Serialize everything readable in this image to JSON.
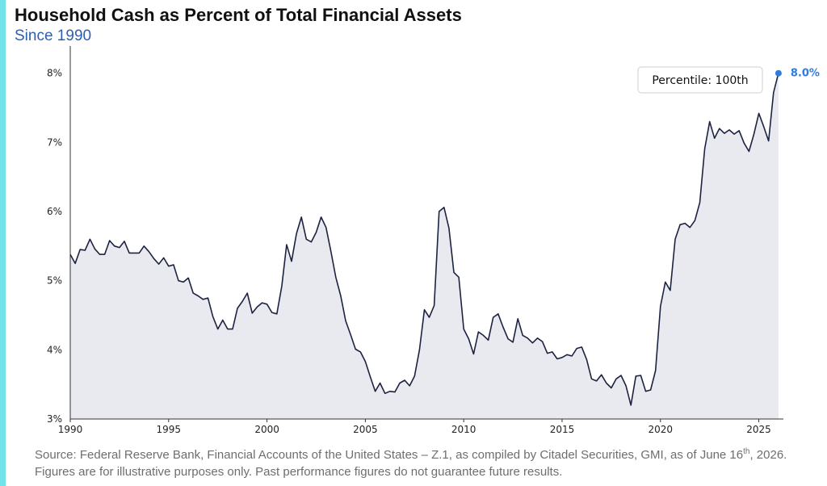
{
  "colors": {
    "accent_bar": "#6FE3E8",
    "subtitle": "#2E5FAE",
    "line": "#1C2340",
    "area_fill": "#E9EAF0",
    "axis": "#333333",
    "last_point": "#2F7BE0"
  },
  "chart_data": {
    "type": "area",
    "title": "Household Cash as Percent of Total Financial Assets",
    "subtitle": "Since 1990",
    "xlabel": "",
    "ylabel": "",
    "xlim": [
      1990,
      2026.25
    ],
    "ylim": [
      3,
      8.3
    ],
    "x_ticks": [
      1990,
      1995,
      2000,
      2005,
      2010,
      2015,
      2020,
      2025
    ],
    "y_ticks": [
      3,
      4,
      5,
      6,
      7,
      8
    ],
    "y_tick_labels": [
      "3%",
      "4%",
      "5%",
      "6%",
      "7%",
      "8%"
    ],
    "grid": false,
    "series": [
      {
        "x": [
          1990.0,
          1990.25,
          1990.5,
          1990.75,
          1991.0,
          1991.25,
          1991.5,
          1991.75,
          1992.0,
          1992.25,
          1992.5,
          1992.75,
          1993.0,
          1993.25,
          1993.5,
          1993.75,
          1994.0,
          1994.25,
          1994.5,
          1994.75,
          1995.0,
          1995.25,
          1995.5,
          1995.75,
          1996.0,
          1996.25,
          1996.5,
          1996.75,
          1997.0,
          1997.25,
          1997.5,
          1997.75,
          1998.0,
          1998.25,
          1998.5,
          1998.75,
          1999.0,
          1999.25,
          1999.5,
          1999.75,
          2000.0,
          2000.25,
          2000.5,
          2000.75,
          2001.0,
          2001.25,
          2001.5,
          2001.75,
          2002.0,
          2002.25,
          2002.5,
          2002.75,
          2003.0,
          2003.25,
          2003.5,
          2003.75,
          2004.0,
          2004.25,
          2004.5,
          2004.75,
          2005.0,
          2005.25,
          2005.5,
          2005.75,
          2006.0,
          2006.25,
          2006.5,
          2006.75,
          2007.0,
          2007.25,
          2007.5,
          2007.75,
          2008.0,
          2008.25,
          2008.5,
          2008.75,
          2009.0,
          2009.25,
          2009.5,
          2009.75,
          2010.0,
          2010.25,
          2010.5,
          2010.75,
          2011.0,
          2011.25,
          2011.5,
          2011.75,
          2012.0,
          2012.25,
          2012.5,
          2012.75,
          2013.0,
          2013.25,
          2013.5,
          2013.75,
          2014.0,
          2014.25,
          2014.5,
          2014.75,
          2015.0,
          2015.25,
          2015.5,
          2015.75,
          2016.0,
          2016.25,
          2016.5,
          2016.75,
          2017.0,
          2017.25,
          2017.5,
          2017.75,
          2018.0,
          2018.25,
          2018.5,
          2018.75,
          2019.0,
          2019.25,
          2019.5,
          2019.75,
          2020.0,
          2020.25,
          2020.5,
          2020.75,
          2021.0,
          2021.25,
          2021.5,
          2021.75,
          2022.0,
          2022.25,
          2022.5,
          2022.75,
          2023.0,
          2023.25,
          2023.5,
          2023.75,
          2024.0,
          2024.25,
          2024.5,
          2024.75,
          2025.0,
          2025.25,
          2025.5,
          2025.75,
          2026.0
        ],
        "values": [
          5.38,
          5.25,
          5.45,
          5.44,
          5.6,
          5.46,
          5.38,
          5.38,
          5.58,
          5.5,
          5.48,
          5.57,
          5.4,
          5.4,
          5.4,
          5.5,
          5.42,
          5.32,
          5.24,
          5.33,
          5.21,
          5.23,
          5.0,
          4.98,
          5.04,
          4.82,
          4.78,
          4.73,
          4.75,
          4.48,
          4.3,
          4.43,
          4.3,
          4.3,
          4.6,
          4.7,
          4.82,
          4.53,
          4.62,
          4.68,
          4.66,
          4.54,
          4.52,
          4.92,
          5.52,
          5.28,
          5.68,
          5.92,
          5.6,
          5.56,
          5.7,
          5.92,
          5.77,
          5.42,
          5.05,
          4.78,
          4.42,
          4.22,
          4.01,
          3.97,
          3.83,
          3.61,
          3.4,
          3.52,
          3.37,
          3.4,
          3.39,
          3.52,
          3.56,
          3.48,
          3.62,
          4.0,
          4.58,
          4.47,
          4.64,
          6.0,
          6.06,
          5.76,
          5.12,
          5.05,
          4.3,
          4.16,
          3.94,
          4.26,
          4.21,
          4.14,
          4.47,
          4.52,
          4.33,
          4.16,
          4.11,
          4.45,
          4.21,
          4.17,
          4.1,
          4.17,
          4.12,
          3.95,
          3.97,
          3.87,
          3.89,
          3.93,
          3.91,
          4.02,
          4.04,
          3.86,
          3.58,
          3.55,
          3.64,
          3.52,
          3.45,
          3.58,
          3.63,
          3.48,
          3.2,
          3.62,
          3.63,
          3.4,
          3.42,
          3.7,
          4.63,
          4.98,
          4.86,
          5.6,
          5.81,
          5.83,
          5.77,
          5.87,
          6.13,
          6.91,
          7.3,
          7.06,
          7.2,
          7.13,
          7.18,
          7.12,
          7.17,
          6.99,
          6.87,
          7.12,
          7.42,
          7.23,
          7.02,
          7.72,
          8.0
        ]
      }
    ],
    "annotations": [
      {
        "type": "callout",
        "text": "Percentile: 100th",
        "location": "top-right"
      },
      {
        "type": "last-value",
        "text": "8.0%",
        "x": 2026.0,
        "y": 8.0
      }
    ]
  },
  "footer": {
    "source_pre": "Source: Federal Reserve Bank, Financial Accounts of the United States – Z.1, as compiled by Citadel Securities, GMI, as of June 16",
    "source_sup": "th",
    "source_post": ", 2026. Figures are for illustrative purposes only. Past performance figures do not guarantee future results."
  }
}
